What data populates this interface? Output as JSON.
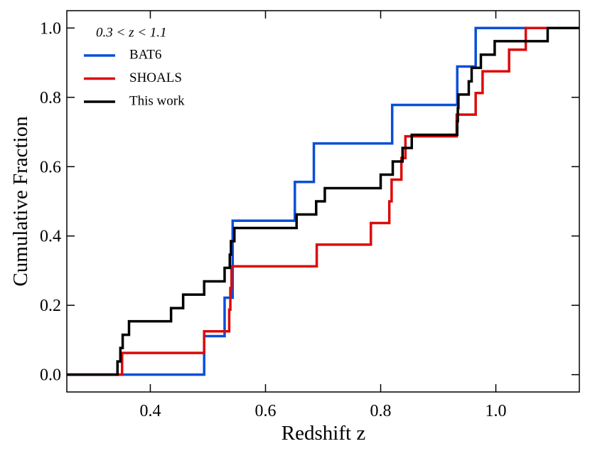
{
  "chart_data": {
    "type": "step",
    "xlabel": "Redshift z",
    "ylabel": "Cumulative Fraction",
    "legend_title": "0.3 < z < 1.1",
    "legend": "upper left",
    "xlim": [
      0.255,
      1.145
    ],
    "ylim": [
      -0.05,
      1.05
    ],
    "xticks": [
      0.4,
      0.6,
      0.8,
      {
        "value": 1,
        "label": "1.0"
      }
    ],
    "yticks": [
      {
        "value": 0,
        "label": "0.0"
      },
      0.2,
      0.4,
      0.6,
      0.8,
      {
        "value": 1,
        "label": "1.0"
      }
    ],
    "series": [
      {
        "name": "BAT6",
        "color": "#0a4fd8",
        "x": [
          0.255,
          0.4935,
          0.529,
          0.543,
          0.651,
          0.684,
          0.82,
          0.933,
          0.965,
          1.055
        ],
        "values": [
          0,
          0.111,
          0.222,
          0.444,
          0.556,
          0.667,
          0.778,
          0.889,
          1.0,
          1.0
        ]
      },
      {
        "name": "SHOALS",
        "color": "#dd0a0a",
        "x": [
          0.255,
          0.351,
          0.4935,
          0.537,
          0.539,
          0.541,
          0.689,
          0.783,
          0.815,
          0.819,
          0.836,
          0.843,
          0.932,
          0.965,
          0.977,
          1.023,
          1.052,
          1.088
        ],
        "values": [
          0,
          0.0625,
          0.125,
          0.1875,
          0.25,
          0.3125,
          0.375,
          0.4375,
          0.5,
          0.5625,
          0.625,
          0.6875,
          0.75,
          0.8125,
          0.875,
          0.9375,
          1.0,
          1.0
        ]
      },
      {
        "name": "This work",
        "color": "#000000",
        "x": [
          0.255,
          0.343,
          0.348,
          0.352,
          0.363,
          0.436,
          0.457,
          0.4935,
          0.529,
          0.538,
          0.54,
          0.546,
          0.654,
          0.688,
          0.703,
          0.8,
          0.821,
          0.838,
          0.854,
          0.933,
          0.934,
          0.935,
          0.953,
          0.958,
          0.974,
          0.998,
          1.09,
          1.145
        ],
        "values": [
          0,
          0.038,
          0.077,
          0.115,
          0.154,
          0.192,
          0.231,
          0.269,
          0.308,
          0.346,
          0.385,
          0.423,
          0.462,
          0.5,
          0.538,
          0.577,
          0.615,
          0.654,
          0.692,
          0.731,
          0.769,
          0.808,
          0.846,
          0.885,
          0.923,
          0.962,
          1.0,
          1.0
        ]
      }
    ]
  }
}
